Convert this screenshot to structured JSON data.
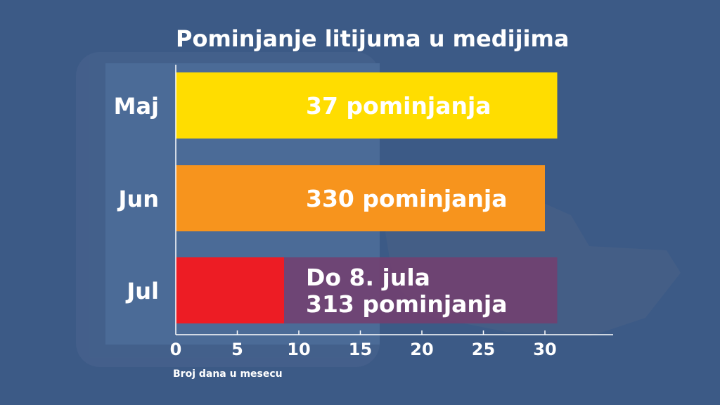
{
  "chart_data": {
    "type": "bar",
    "orientation": "horizontal",
    "title": "Pominjanje litijuma u medijima",
    "xlabel": "Broj dana u mesecu",
    "ylabel": "",
    "xlim": [
      0,
      35
    ],
    "xticks": [
      0,
      5,
      10,
      15,
      20,
      25,
      30
    ],
    "grid": false,
    "categories": [
      "Maj",
      "Jun",
      "Jul"
    ],
    "values": [
      31,
      30,
      8.8
    ],
    "month_length": [
      31,
      30,
      31
    ],
    "bar_labels": [
      [
        "37 pominjanja"
      ],
      [
        "330 pominjanja"
      ],
      [
        "Do 8. jula",
        "313 pominjanja"
      ]
    ],
    "colors": [
      "#ffdd00",
      "#f7941d",
      "#ed1c24"
    ],
    "remainder_color": "#743e6e"
  }
}
